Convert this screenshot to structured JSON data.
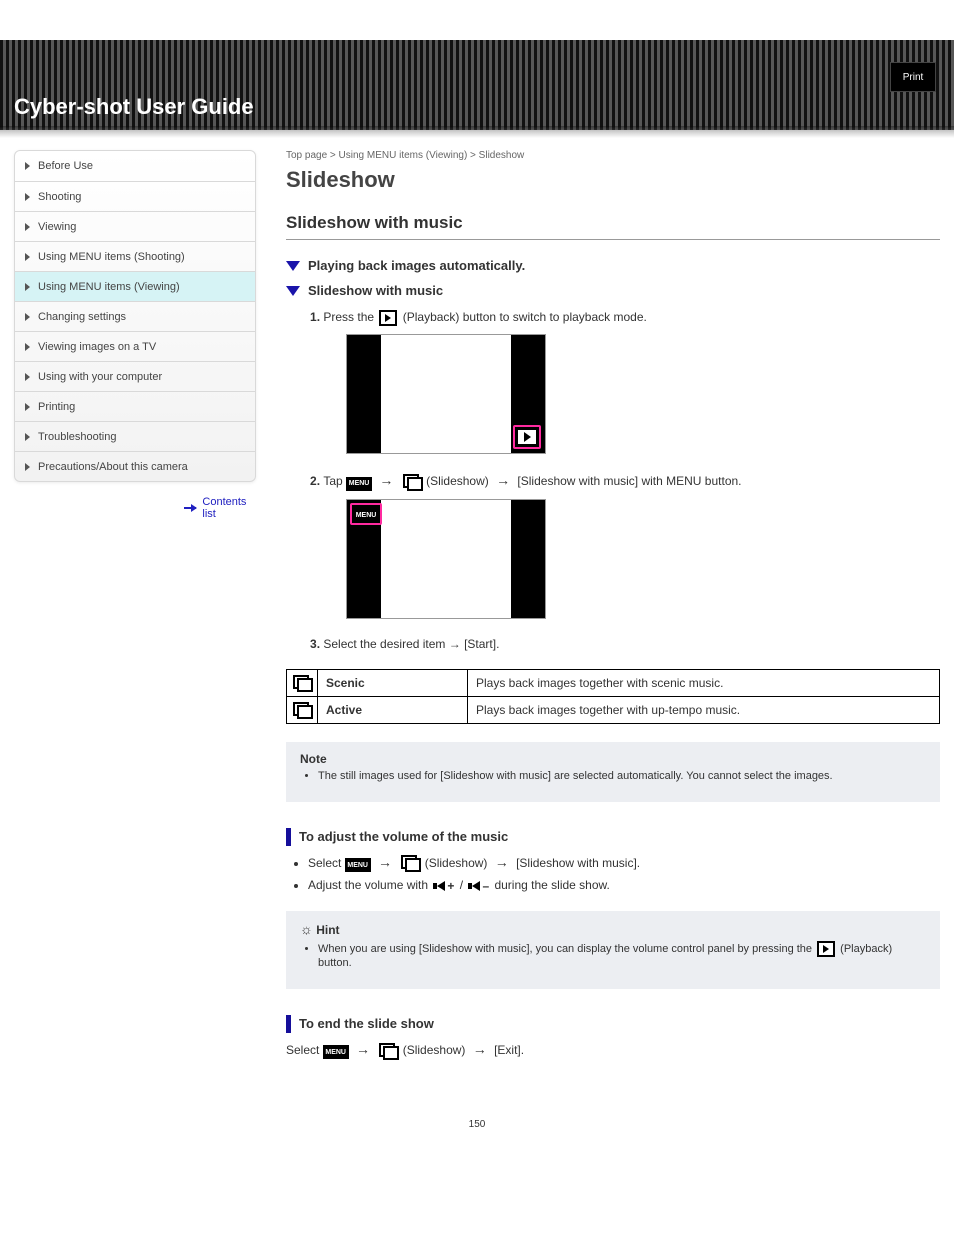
{
  "topbar": {
    "brand": "Cyber-shot User Guide",
    "back": "Print"
  },
  "sidebar": {
    "items": [
      "Before Use",
      "Shooting",
      "Viewing",
      "Using MENU items (Shooting)",
      "Using MENU items (Viewing)",
      "Changing settings",
      "Viewing images on a TV",
      "Using with your computer",
      "Printing",
      "Troubleshooting",
      "Precautions/About this camera"
    ],
    "active_index": 4,
    "back_to_top": "Contents list"
  },
  "breadcrumb": "Top page > Using MENU items (Viewing) > Slideshow",
  "page_title": "Slideshow",
  "section_title": "Slideshow with music",
  "steps_main": [
    {
      "text": "Press the (Playback) button to switch to playback mode.",
      "icon_after_word": 2
    },
    {
      "text": "Select (Slideshow) → [Slideshow with music] with MENU button.",
      "prefix": "Tap ",
      "menu_tag": true
    }
  ],
  "screens": {
    "play_highlight": {
      "label": "play-icon highlighted bottom-right"
    },
    "menu_highlight": {
      "label": "MENU highlighted top-left",
      "menu_text": "MENU"
    }
  },
  "tail_line": "Select the desired item → [Start].",
  "options_table": [
    {
      "icon": "scenic",
      "name": "Scenic",
      "desc": "Plays back images together with scenic music."
    },
    {
      "icon": "active",
      "name": "Active",
      "desc": "Plays back images together with up-tempo music."
    }
  ],
  "note_box": {
    "heading": "Note",
    "bullets": [
      "The still images used for [Slideshow with music] are selected automatically. You cannot select the images."
    ]
  },
  "volume_section": {
    "heading": "To adjust the volume of the music",
    "lines": [
      "Select (Slideshow) → [Slideshow with music].",
      "Adjust the volume with / during the slide show."
    ]
  },
  "hint_box": {
    "heading": "Hint",
    "bullets": [
      "When you are using [Slideshow with music], you can display the volume control panel by pressing the (Playback) button."
    ]
  },
  "end_section": {
    "heading": "To end the slide show",
    "line": "Select (Slideshow) → [Exit]."
  },
  "page_number": "150",
  "colors": {
    "accent": "#150e9a",
    "highlight_box": "#ff2aa0",
    "callout_bg": "#eceef2"
  }
}
